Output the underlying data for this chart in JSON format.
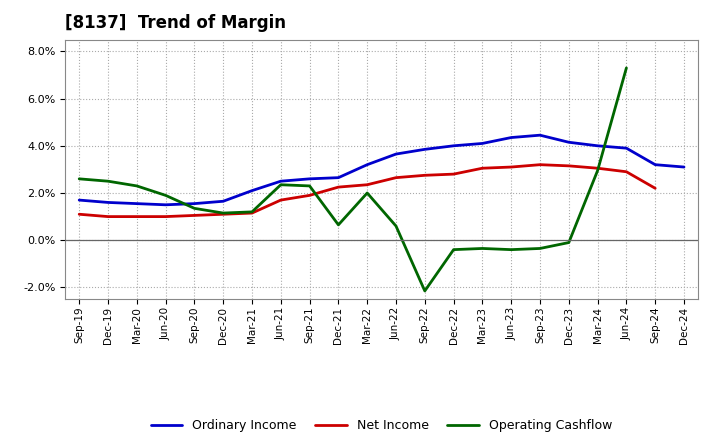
{
  "title": "[8137]  Trend of Margin",
  "x_labels": [
    "Sep-19",
    "Dec-19",
    "Mar-20",
    "Jun-20",
    "Sep-20",
    "Dec-20",
    "Mar-21",
    "Jun-21",
    "Sep-21",
    "Dec-21",
    "Mar-22",
    "Jun-22",
    "Sep-22",
    "Dec-22",
    "Mar-23",
    "Jun-23",
    "Sep-23",
    "Dec-23",
    "Mar-24",
    "Jun-24",
    "Sep-24",
    "Dec-24"
  ],
  "ordinary_income": [
    1.7,
    1.6,
    1.55,
    1.5,
    1.55,
    1.65,
    2.1,
    2.5,
    2.6,
    2.65,
    3.2,
    3.65,
    3.85,
    4.0,
    4.1,
    4.35,
    4.45,
    4.15,
    4.0,
    3.9,
    3.2,
    3.1
  ],
  "net_income": [
    1.1,
    1.0,
    1.0,
    1.0,
    1.05,
    1.1,
    1.15,
    1.7,
    1.9,
    2.25,
    2.35,
    2.65,
    2.75,
    2.8,
    3.05,
    3.1,
    3.2,
    3.15,
    3.05,
    2.9,
    2.2,
    null
  ],
  "operating_cashflow": [
    2.6,
    2.5,
    2.3,
    1.9,
    1.35,
    1.15,
    1.2,
    2.35,
    2.3,
    0.65,
    2.0,
    0.6,
    -2.15,
    -0.4,
    -0.35,
    -0.4,
    -0.35,
    -0.1,
    2.95,
    7.3,
    null,
    null
  ],
  "ylim": [
    -2.5,
    8.5
  ],
  "yticks": [
    -2.0,
    0.0,
    2.0,
    4.0,
    6.0,
    8.0
  ],
  "colors": {
    "ordinary_income": "#0000cc",
    "net_income": "#cc0000",
    "operating_cashflow": "#006600"
  },
  "line_width": 2.0,
  "background_color": "#ffffff",
  "grid_color": "#aaaaaa",
  "legend_labels": [
    "Ordinary Income",
    "Net Income",
    "Operating Cashflow"
  ]
}
